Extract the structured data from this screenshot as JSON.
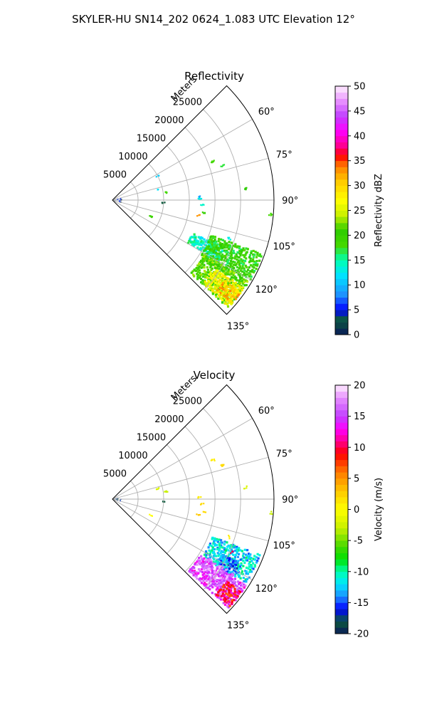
{
  "figure_title": "SKYLER-HU  SN14_202  0624_1.083 UTC Elevation 12°",
  "colors": {
    "grid": "#b0b0b0",
    "frame": "#000000"
  },
  "chart_data": [
    {
      "type": "heatmap",
      "title": "Reflectivity",
      "radial_label": "Meters",
      "radial_ticks": [
        5000,
        10000,
        15000,
        20000,
        25000
      ],
      "angle_ticks": [
        "60°",
        "75°",
        "90°",
        "105°",
        "120°",
        "135°"
      ],
      "angle_values": [
        60,
        75,
        90,
        105,
        120,
        135
      ],
      "azimuth_range_deg": [
        45,
        135
      ],
      "range_max_m": 31500,
      "colorbar": {
        "label": "Reflectivity dBZ",
        "range": [
          0,
          50
        ],
        "ticks": [
          0,
          5,
          10,
          15,
          20,
          25,
          30,
          35,
          40,
          45,
          50
        ],
        "stops": [
          [
            0,
            "#0a1a5a"
          ],
          [
            3,
            "#0c5a3c"
          ],
          [
            5,
            "#0000ff"
          ],
          [
            8,
            "#1e90ff"
          ],
          [
            12,
            "#00e5ff"
          ],
          [
            15,
            "#00ffb0"
          ],
          [
            18,
            "#44d800"
          ],
          [
            21,
            "#2ecc00"
          ],
          [
            24,
            "#c8f000"
          ],
          [
            27,
            "#ffff00"
          ],
          [
            31,
            "#ffc800"
          ],
          [
            34,
            "#ff7a00"
          ],
          [
            36,
            "#ff0000"
          ],
          [
            38,
            "#ff0090"
          ],
          [
            41,
            "#ff00ff"
          ],
          [
            44,
            "#c040ff"
          ],
          [
            47,
            "#e890ff"
          ],
          [
            50,
            "#fff0ff"
          ]
        ]
      },
      "features": [
        {
          "az": 103,
          "r0": 17000,
          "r1": 24000,
          "az0": 113,
          "az1": 120,
          "value": 14
        },
        {
          "az": 101,
          "r0": 20500,
          "r1": 31000,
          "az0": 110,
          "az1": 123,
          "value": 19
        },
        {
          "az": 110,
          "r0": 21000,
          "r1": 31000,
          "az0": 121,
          "az1": 133,
          "value": 21
        },
        {
          "az": 110,
          "r0": 24000,
          "r1": 31000,
          "az0": 124,
          "az1": 133,
          "value": 27
        },
        {
          "az": 110,
          "r0": 27000,
          "r1": 31000,
          "az0": 126,
          "az1": 131,
          "value": 31
        }
      ],
      "specks": [
        {
          "az": 69,
          "r": 21000,
          "value": 18
        },
        {
          "az": 73,
          "r": 22500,
          "value": 17
        },
        {
          "az": 85,
          "r": 26000,
          "value": 21
        },
        {
          "az": 89,
          "r": 17000,
          "value": 13
        },
        {
          "az": 93,
          "r": 17500,
          "value": 14
        },
        {
          "az": 98,
          "r": 18000,
          "value": 20
        },
        {
          "az": 100,
          "r": 17000,
          "value": 33
        },
        {
          "az": 108,
          "r": 24000,
          "value": 13
        },
        {
          "az": 95,
          "r": 31000,
          "value": 18
        },
        {
          "az": 82,
          "r": 10500,
          "value": 18
        },
        {
          "az": 77,
          "r": 9000,
          "value": 12
        },
        {
          "az": 62,
          "r": 10000,
          "value": 11
        },
        {
          "az": 113,
          "r": 8200,
          "value": 19
        },
        {
          "az": 93,
          "r": 10000,
          "value": 3
        },
        {
          "az": 88,
          "r": 17000,
          "value": 9
        }
      ]
    },
    {
      "type": "heatmap",
      "title": "Velocity",
      "radial_label": "Meters",
      "radial_ticks": [
        5000,
        10000,
        15000,
        20000,
        25000
      ],
      "angle_ticks": [
        "60°",
        "75°",
        "90°",
        "105°",
        "120°",
        "135°"
      ],
      "angle_values": [
        60,
        75,
        90,
        105,
        120,
        135
      ],
      "azimuth_range_deg": [
        45,
        135
      ],
      "range_max_m": 31500,
      "colorbar": {
        "label": "Velocity (m/s)",
        "range": [
          -20,
          20
        ],
        "ticks": [
          -20,
          -15,
          -10,
          -5,
          0,
          5,
          10,
          15,
          20
        ],
        "stops": [
          [
            -20,
            "#0a1a5a"
          ],
          [
            -18,
            "#0c5a3c"
          ],
          [
            -16,
            "#0000ff"
          ],
          [
            -14,
            "#1e90ff"
          ],
          [
            -12,
            "#00e5ff"
          ],
          [
            -10,
            "#00ffb0"
          ],
          [
            -8,
            "#00e000"
          ],
          [
            -6,
            "#44d800"
          ],
          [
            -3,
            "#c8f000"
          ],
          [
            0,
            "#ffff00"
          ],
          [
            3,
            "#ffc800"
          ],
          [
            6,
            "#ff7a00"
          ],
          [
            9,
            "#ff0000"
          ],
          [
            11,
            "#ff0090"
          ],
          [
            13,
            "#ff00ff"
          ],
          [
            15,
            "#c040ff"
          ],
          [
            18,
            "#e890ff"
          ],
          [
            20,
            "#fff0ff"
          ]
        ]
      },
      "features": [
        {
          "az": 103,
          "r0": 21000,
          "r1": 31000,
          "az0": 111,
          "az1": 122,
          "value": -12
        },
        {
          "az": 103,
          "r0": 24000,
          "r1": 28500,
          "az0": 117,
          "az1": 123,
          "value": -14
        },
        {
          "az": 110,
          "r0": 20500,
          "r1": 31000,
          "az0": 123,
          "az1": 133,
          "value": 15
        },
        {
          "az": 110,
          "r0": 22000,
          "r1": 28000,
          "az0": 122,
          "az1": 128,
          "value": 17
        },
        {
          "az": 110,
          "r0": 27500,
          "r1": 31000,
          "az0": 126,
          "az1": 133,
          "value": 9
        }
      ],
      "specks": [
        {
          "az": 69,
          "r": 21000,
          "value": 1
        },
        {
          "az": 73,
          "r": 22500,
          "value": 2
        },
        {
          "az": 85,
          "r": 26000,
          "value": -2
        },
        {
          "az": 89,
          "r": 17000,
          "value": 1
        },
        {
          "az": 93,
          "r": 17500,
          "value": 2
        },
        {
          "az": 98,
          "r": 18000,
          "value": 2
        },
        {
          "az": 100,
          "r": 17000,
          "value": 3
        },
        {
          "az": 108,
          "r": 24000,
          "value": 1
        },
        {
          "az": 95,
          "r": 31000,
          "value": -3
        },
        {
          "az": 82,
          "r": 10500,
          "value": -3
        },
        {
          "az": 77,
          "r": 9000,
          "value": -2
        },
        {
          "az": 113,
          "r": 8200,
          "value": 0
        },
        {
          "az": 93,
          "r": 10000,
          "value": -18
        },
        {
          "az": 114,
          "r": 25500,
          "value": 10
        }
      ]
    }
  ]
}
